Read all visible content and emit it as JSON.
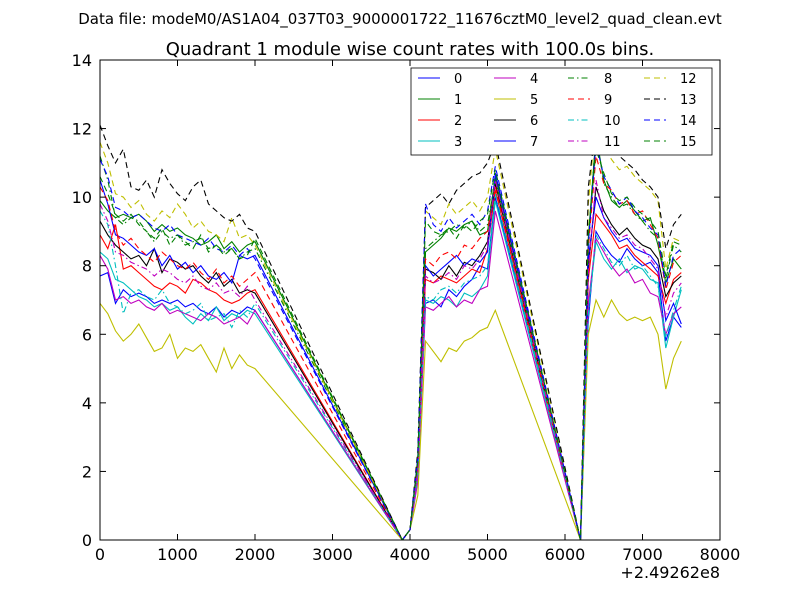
{
  "figure": {
    "suptitle": "Data file: modeM0/AS1A04_037T03_9000001722_11676cztM0_level2_quad_clean.evt"
  },
  "chart_data": {
    "type": "line",
    "title": "Quadrant 1 module wise count rates with 100.0s bins.",
    "xlabel": "",
    "ylabel": "",
    "x_offset_label": "+2.49262e8",
    "xlim": [
      0,
      8000
    ],
    "ylim": [
      0,
      14
    ],
    "xticks": [
      0,
      1000,
      2000,
      3000,
      4000,
      5000,
      6000,
      7000,
      8000
    ],
    "xtick_labels": [
      "0",
      "1000",
      "2000",
      "3000",
      "4000",
      "5000",
      "6000",
      "7000",
      "8000"
    ],
    "yticks": [
      0,
      2,
      4,
      6,
      8,
      10,
      12,
      14
    ],
    "ytick_labels": [
      "0",
      "2",
      "4",
      "6",
      "8",
      "10",
      "12",
      "14"
    ],
    "legend_location": "upper-right",
    "legend_columns": 4,
    "segments": [
      {
        "x_start": 0,
        "x_step": 100,
        "count": 21
      },
      {
        "x_start": 4000,
        "x_step": 100,
        "count": 12
      },
      {
        "x_start": 6300,
        "x_step": 100,
        "count": 13
      }
    ],
    "series": [
      {
        "name": "0",
        "color": "#0000ff",
        "dash": "solid",
        "values": [
          7.7,
          7.8,
          6.9,
          7.3,
          7.1,
          7.2,
          7.1,
          6.9,
          7.0,
          6.9,
          7.0,
          6.8,
          6.9,
          6.7,
          6.6,
          6.8,
          6.5,
          6.7,
          6.6,
          6.8,
          6.7,
          0.3,
          2.0,
          6.9,
          7.0,
          6.8,
          7.3,
          7.1,
          7.4,
          7.6,
          8.0,
          7.9,
          10.0,
          6.4,
          9.0,
          8.6,
          8.3,
          8.1,
          8.5,
          8.2,
          8.0,
          8.1,
          7.8,
          5.8,
          6.5,
          6.2
        ]
      },
      {
        "name": "1",
        "color": "#008000",
        "dash": "solid",
        "values": [
          9.9,
          9.6,
          9.4,
          9.5,
          9.4,
          9.5,
          9.3,
          9.0,
          9.2,
          9.0,
          9.1,
          8.9,
          8.8,
          8.6,
          8.7,
          8.9,
          8.5,
          8.7,
          8.4,
          8.6,
          8.7,
          0.3,
          2.2,
          8.4,
          8.6,
          8.8,
          9.1,
          9.0,
          9.2,
          9.3,
          8.9,
          9.0,
          10.6,
          8.8,
          11.8,
          10.5,
          9.9,
          9.7,
          9.9,
          9.6,
          9.3,
          9.4,
          8.6,
          7.5,
          8.2,
          7.9
        ]
      },
      {
        "name": "2",
        "color": "#ff0000",
        "dash": "solid",
        "values": [
          8.9,
          8.5,
          9.2,
          7.9,
          8.0,
          7.8,
          7.6,
          7.4,
          7.3,
          7.5,
          7.4,
          7.2,
          7.6,
          7.5,
          7.3,
          7.2,
          7.0,
          6.9,
          7.0,
          7.2,
          7.3,
          0.3,
          2.1,
          7.6,
          7.5,
          7.7,
          7.6,
          7.5,
          7.7,
          7.9,
          7.8,
          8.5,
          10.2,
          7.6,
          9.5,
          9.2,
          8.9,
          8.5,
          8.6,
          8.3,
          8.1,
          7.9,
          7.7,
          6.9,
          7.6,
          7.8
        ]
      },
      {
        "name": "3",
        "color": "#00bfbf",
        "dash": "solid",
        "values": [
          8.4,
          8.2,
          7.6,
          7.5,
          7.3,
          7.1,
          7.0,
          6.8,
          6.9,
          6.7,
          6.8,
          6.5,
          6.3,
          6.6,
          6.4,
          6.8,
          6.4,
          6.6,
          6.5,
          6.7,
          6.6,
          0.3,
          1.8,
          7.0,
          6.9,
          7.1,
          7.0,
          6.8,
          7.2,
          7.1,
          7.3,
          7.7,
          9.9,
          6.7,
          8.7,
          8.2,
          7.9,
          8.2,
          7.8,
          8.0,
          7.9,
          7.6,
          7.5,
          5.6,
          6.5,
          7.3
        ]
      },
      {
        "name": "4",
        "color": "#bf00bf",
        "dash": "solid",
        "values": [
          8.3,
          7.9,
          7.0,
          7.1,
          6.9,
          7.0,
          6.8,
          6.7,
          6.9,
          6.6,
          6.7,
          6.6,
          6.5,
          6.4,
          6.6,
          6.5,
          6.3,
          6.4,
          6.5,
          6.3,
          6.7,
          0.3,
          1.7,
          6.8,
          6.7,
          6.9,
          7.1,
          6.8,
          7.0,
          6.9,
          7.3,
          7.4,
          9.6,
          6.9,
          8.8,
          8.4,
          8.0,
          7.7,
          7.9,
          7.5,
          7.6,
          7.2,
          7.1,
          6.0,
          6.6,
          6.8
        ]
      },
      {
        "name": "5",
        "color": "#bfbf00",
        "dash": "solid",
        "values": [
          6.9,
          6.6,
          6.1,
          5.8,
          6.0,
          6.3,
          5.9,
          5.5,
          5.6,
          6.0,
          5.3,
          5.6,
          5.5,
          5.7,
          5.3,
          4.9,
          5.6,
          5.0,
          5.4,
          5.1,
          5.0,
          0.3,
          1.3,
          5.8,
          5.5,
          5.2,
          5.6,
          5.5,
          5.8,
          5.9,
          6.1,
          6.2,
          6.7,
          6.0,
          7.0,
          6.5,
          7.0,
          6.6,
          6.4,
          6.5,
          6.4,
          6.5,
          6.0,
          4.4,
          5.3,
          5.8
        ]
      },
      {
        "name": "6",
        "color": "#000000",
        "dash": "solid",
        "values": [
          9.3,
          8.9,
          8.6,
          8.4,
          8.2,
          8.3,
          8.0,
          8.5,
          7.8,
          8.2,
          8.1,
          7.9,
          8.0,
          7.7,
          7.5,
          7.8,
          7.4,
          7.6,
          7.2,
          7.3,
          7.2,
          0.3,
          2.3,
          7.9,
          7.8,
          7.6,
          8.0,
          7.7,
          8.1,
          8.0,
          8.3,
          8.7,
          10.4,
          7.9,
          10.3,
          9.6,
          9.2,
          8.9,
          9.1,
          8.8,
          8.6,
          8.5,
          8.2,
          7.1,
          7.5,
          7.7
        ]
      },
      {
        "name": "7",
        "color": "#0000ff",
        "dash": "solid",
        "values": [
          10.5,
          9.8,
          8.9,
          8.8,
          8.6,
          8.4,
          8.3,
          8.5,
          8.0,
          8.3,
          7.9,
          8.1,
          7.8,
          8.0,
          7.7,
          7.6,
          7.8,
          7.5,
          8.3,
          8.2,
          8.3,
          0.3,
          2.4,
          8.0,
          7.7,
          7.9,
          8.1,
          8.3,
          8.0,
          8.2,
          8.1,
          8.4,
          10.7,
          8.2,
          10.0,
          9.4,
          9.0,
          8.7,
          8.8,
          8.5,
          8.4,
          8.3,
          8.0,
          6.4,
          6.9,
          6.3
        ]
      },
      {
        "name": "8",
        "color": "#008000",
        "dash": "dashdot",
        "values": [
          11.2,
          10.5,
          9.4,
          9.2,
          9.4,
          9.3,
          9.0,
          8.7,
          9.0,
          8.8,
          8.9,
          8.6,
          8.7,
          8.8,
          8.5,
          8.6,
          8.4,
          8.5,
          8.2,
          8.4,
          8.5,
          0.3,
          2.3,
          8.5,
          8.7,
          8.9,
          9.0,
          9.2,
          9.1,
          9.3,
          9.0,
          9.2,
          10.5,
          8.7,
          11.9,
          10.4,
          10.0,
          9.7,
          9.8,
          9.5,
          9.3,
          9.0,
          8.8,
          7.6,
          8.6,
          8.4
        ]
      },
      {
        "name": "9",
        "color": "#ff0000",
        "dash": "dashed",
        "values": [
          10.3,
          9.9,
          9.0,
          8.6,
          8.8,
          8.5,
          8.3,
          8.1,
          8.4,
          8.2,
          8.0,
          7.9,
          8.1,
          7.8,
          7.6,
          7.9,
          7.5,
          7.7,
          7.4,
          7.6,
          7.8,
          0.3,
          2.2,
          8.2,
          8.0,
          8.3,
          8.4,
          8.2,
          8.6,
          8.5,
          8.8,
          9.0,
          10.3,
          8.5,
          11.2,
          10.4,
          10.2,
          9.8,
          9.9,
          9.5,
          9.6,
          9.2,
          8.8,
          7.3,
          8.1,
          8.3
        ]
      },
      {
        "name": "10",
        "color": "#00bfbf",
        "dash": "dashdot",
        "values": [
          9.6,
          9.2,
          8.0,
          6.6,
          7.2,
          7.3,
          7.1,
          7.0,
          7.3,
          6.9,
          6.8,
          6.6,
          6.7,
          6.9,
          6.4,
          6.5,
          6.6,
          6.2,
          6.7,
          6.5,
          6.9,
          0.3,
          1.9,
          7.1,
          7.0,
          7.3,
          7.4,
          7.2,
          7.5,
          7.6,
          7.7,
          8.0,
          10.1,
          6.6,
          8.9,
          8.5,
          8.1,
          8.0,
          8.3,
          7.9,
          8.0,
          7.7,
          7.4,
          5.9,
          6.7,
          7.4
        ]
      },
      {
        "name": "11",
        "color": "#bf00bf",
        "dash": "dashdot",
        "values": [
          9.8,
          9.3,
          8.4,
          8.3,
          8.1,
          8.0,
          7.9,
          7.7,
          7.9,
          7.8,
          7.6,
          7.5,
          7.7,
          7.4,
          7.3,
          7.5,
          7.2,
          7.3,
          7.1,
          7.4,
          7.0,
          0.3,
          2.0,
          7.7,
          7.5,
          7.6,
          7.8,
          7.6,
          8.0,
          7.9,
          8.2,
          8.6,
          10.5,
          7.8,
          10.5,
          9.4,
          9.1,
          8.8,
          8.9,
          8.6,
          8.5,
          8.2,
          7.9,
          6.5,
          7.2,
          7.5
        ]
      },
      {
        "name": "12",
        "color": "#bfbf00",
        "dash": "dashed",
        "values": [
          11.6,
          11.0,
          10.1,
          10.0,
          9.7,
          9.9,
          9.5,
          9.3,
          9.6,
          9.4,
          9.8,
          9.5,
          9.1,
          9.3,
          9.0,
          8.9,
          8.7,
          9.4,
          8.8,
          8.9,
          8.6,
          0.3,
          2.5,
          9.6,
          9.4,
          9.2,
          9.8,
          9.5,
          9.7,
          9.9,
          9.6,
          10.0,
          11.4,
          9.8,
          12.3,
          11.5,
          11.1,
          10.8,
          10.9,
          10.6,
          10.4,
          10.2,
          9.9,
          7.9,
          8.8,
          8.7
        ]
      },
      {
        "name": "13",
        "color": "#000000",
        "dash": "dashed",
        "values": [
          12.1,
          11.5,
          11.0,
          11.4,
          10.3,
          10.2,
          10.5,
          10.0,
          10.8,
          10.4,
          10.1,
          9.9,
          10.3,
          10.5,
          9.8,
          9.6,
          9.4,
          9.3,
          9.5,
          9.1,
          9.0,
          0.3,
          2.6,
          9.7,
          9.9,
          10.1,
          9.8,
          10.2,
          10.4,
          10.6,
          10.7,
          11.0,
          11.6,
          10.3,
          12.1,
          11.4,
          11.7,
          11.2,
          11.0,
          10.8,
          10.5,
          10.3,
          10.0,
          8.5,
          9.2,
          9.5
        ]
      },
      {
        "name": "14",
        "color": "#0000ff",
        "dash": "dashed",
        "values": [
          11.1,
          10.6,
          9.7,
          9.6,
          9.4,
          9.5,
          9.3,
          9.1,
          9.0,
          9.2,
          8.9,
          8.8,
          8.7,
          8.6,
          8.8,
          8.5,
          8.4,
          8.6,
          8.3,
          8.5,
          8.2,
          0.3,
          2.4,
          9.8,
          9.2,
          9.0,
          9.4,
          9.1,
          9.3,
          9.5,
          9.2,
          9.6,
          10.9,
          8.6,
          11.6,
          10.6,
          10.2,
          9.8,
          10.0,
          9.6,
          9.4,
          9.1,
          8.9,
          7.4,
          8.3,
          8.5
        ]
      },
      {
        "name": "15",
        "color": "#008000",
        "dash": "dashed",
        "values": [
          10.6,
          10.1,
          9.5,
          9.3,
          9.5,
          9.2,
          9.0,
          8.8,
          9.1,
          8.6,
          8.9,
          8.7,
          8.5,
          8.9,
          8.4,
          8.6,
          8.3,
          8.5,
          8.2,
          8.3,
          8.8,
          0.3,
          2.3,
          9.3,
          9.0,
          8.9,
          9.1,
          8.8,
          9.2,
          9.0,
          9.3,
          9.5,
          10.8,
          8.9,
          11.4,
          10.7,
          10.1,
          9.9,
          10.0,
          9.7,
          9.5,
          9.3,
          9.0,
          7.7,
          8.7,
          8.6
        ]
      }
    ]
  }
}
